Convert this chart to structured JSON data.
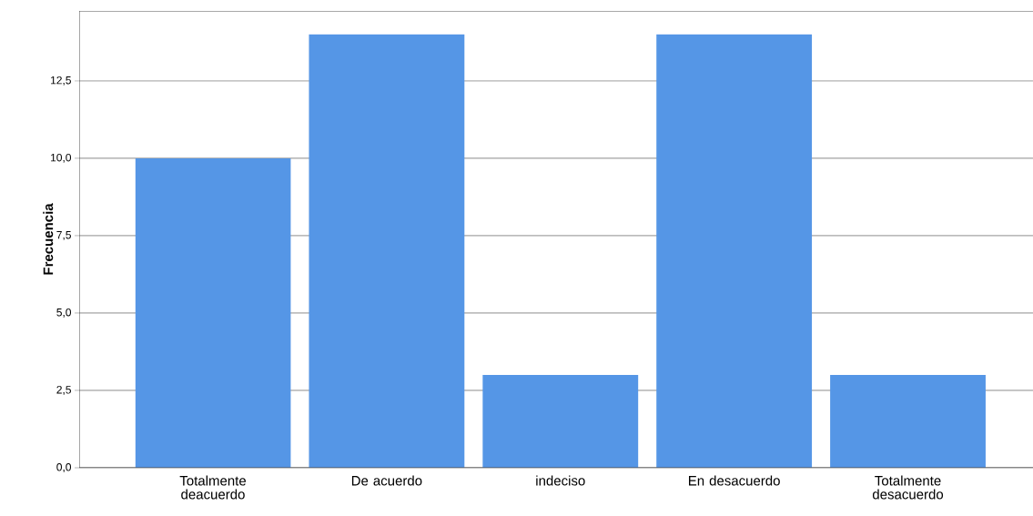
{
  "chart_data": {
    "type": "bar",
    "ylabel": "Frecuencia",
    "categories": [
      "Totalmente deacuerdo",
      "De acuerdo",
      "indeciso",
      "En desacuerdo",
      "Totalmente desacuerdo"
    ],
    "values": [
      10,
      14,
      3,
      14,
      3
    ],
    "color": "#5596e6",
    "ylim": [
      0,
      14.76
    ],
    "yticks": [
      {
        "value": 0,
        "label": "0,0"
      },
      {
        "value": 2.5,
        "label": "2,5"
      },
      {
        "value": 5,
        "label": "5,0"
      },
      {
        "value": 7.5,
        "label": "7,5"
      },
      {
        "value": 10,
        "label": "10,0"
      },
      {
        "value": 12.5,
        "label": "12,5"
      }
    ],
    "grid": "y"
  }
}
